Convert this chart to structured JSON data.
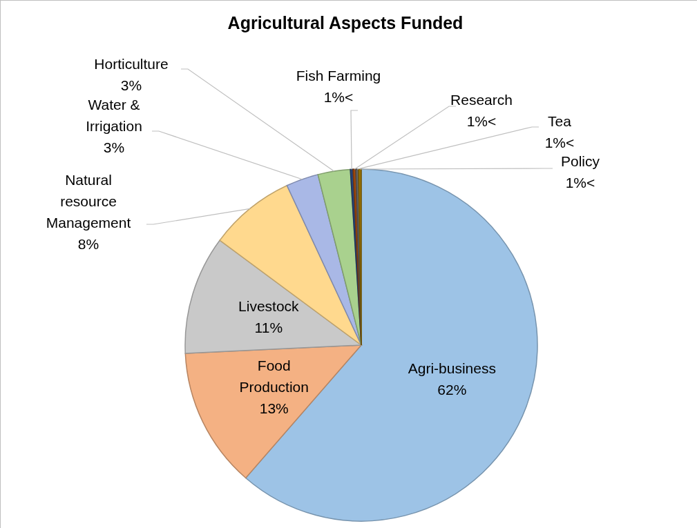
{
  "chart_data": {
    "type": "pie",
    "title": "Agricultural  Aspects Funded",
    "categories": [
      "Agri-business",
      "Food Production",
      "Livestock",
      "Natural resource Management",
      "Water & Irrigation",
      "Horticulture",
      "Fish Farming",
      "Research",
      "Tea",
      "Policy"
    ],
    "values": [
      62,
      13,
      11,
      8,
      3,
      3,
      0.25,
      0.25,
      0.25,
      0.25
    ],
    "value_labels": [
      "62%",
      "13%",
      "11%",
      "8%",
      "3%",
      "3%",
      "1%<",
      "1%<",
      "1%<",
      "1%<"
    ],
    "colors": [
      "#9dc3e6",
      "#f4b183",
      "#c9c9c9",
      "#ffd98e",
      "#a9b8e6",
      "#a9d18e",
      "#264478",
      "#9e480e",
      "#636363",
      "#997300"
    ],
    "legend": false
  }
}
